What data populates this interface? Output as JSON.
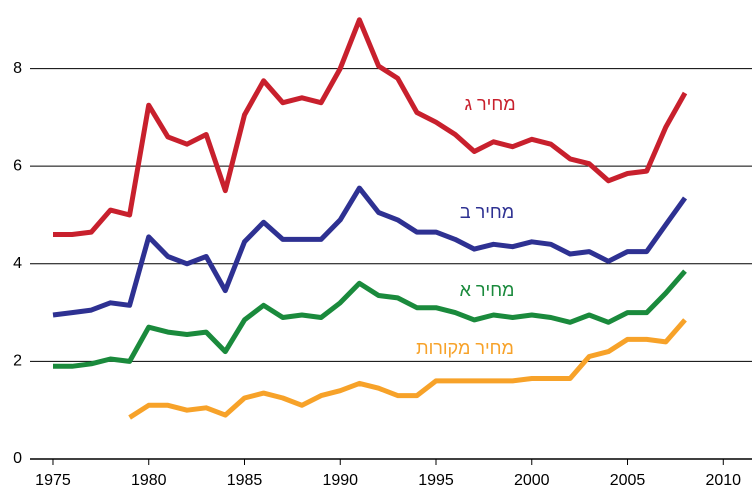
{
  "chart_data": {
    "type": "line",
    "x": [
      1975,
      1976,
      1977,
      1978,
      1979,
      1980,
      1981,
      1982,
      1983,
      1984,
      1985,
      1986,
      1987,
      1988,
      1989,
      1990,
      1991,
      1992,
      1993,
      1994,
      1995,
      1996,
      1997,
      1998,
      1999,
      2000,
      2001,
      2002,
      2003,
      2004,
      2005,
      2006,
      2007,
      2008
    ],
    "series": [
      {
        "name": "מחיר ג",
        "color": "#c8202d",
        "values": [
          4.6,
          4.6,
          4.65,
          5.1,
          5.0,
          7.25,
          6.6,
          6.45,
          6.65,
          5.5,
          7.05,
          7.75,
          7.3,
          7.4,
          7.3,
          8.0,
          9.0,
          8.05,
          7.8,
          7.1,
          6.9,
          6.65,
          6.3,
          6.5,
          6.4,
          6.55,
          6.45,
          6.15,
          6.05,
          5.7,
          5.85,
          5.9,
          6.8,
          7.5
        ]
      },
      {
        "name": "מחיר ב",
        "color": "#2e3192",
        "values": [
          2.95,
          3.0,
          3.05,
          3.2,
          3.15,
          4.55,
          4.15,
          4.0,
          4.15,
          3.45,
          4.45,
          4.85,
          4.5,
          4.5,
          4.5,
          4.9,
          5.55,
          5.05,
          4.9,
          4.65,
          4.65,
          4.5,
          4.3,
          4.4,
          4.35,
          4.45,
          4.4,
          4.2,
          4.25,
          4.05,
          4.25,
          4.25,
          4.8,
          5.35
        ]
      },
      {
        "name": "מחיר א",
        "color": "#1a8a3c",
        "values": [
          1.9,
          1.9,
          1.95,
          2.05,
          2.0,
          2.7,
          2.6,
          2.55,
          2.6,
          2.2,
          2.85,
          3.15,
          2.9,
          2.95,
          2.9,
          3.2,
          3.6,
          3.35,
          3.3,
          3.1,
          3.1,
          3.0,
          2.85,
          2.95,
          2.9,
          2.95,
          2.9,
          2.8,
          2.95,
          2.8,
          3.0,
          3.0,
          3.4,
          3.85
        ]
      },
      {
        "name": "מחיר מקורות",
        "color": "#f7a229",
        "values": [
          null,
          null,
          null,
          null,
          0.85,
          1.1,
          1.1,
          1.0,
          1.05,
          0.9,
          1.25,
          1.35,
          1.25,
          1.1,
          1.3,
          1.4,
          1.55,
          1.45,
          1.3,
          1.3,
          1.6,
          1.6,
          1.6,
          1.6,
          1.6,
          1.65,
          1.65,
          1.65,
          2.1,
          2.2,
          2.45,
          2.45,
          2.4,
          2.85
        ]
      }
    ],
    "xlim": [
      1973.8,
      2011.5
    ],
    "xticks": [
      1975,
      1980,
      1985,
      1990,
      1995,
      2000,
      2005,
      2010
    ],
    "ylim": [
      0,
      9.2
    ],
    "yticks": [
      0,
      2,
      4,
      6,
      8
    ],
    "grid": true
  }
}
